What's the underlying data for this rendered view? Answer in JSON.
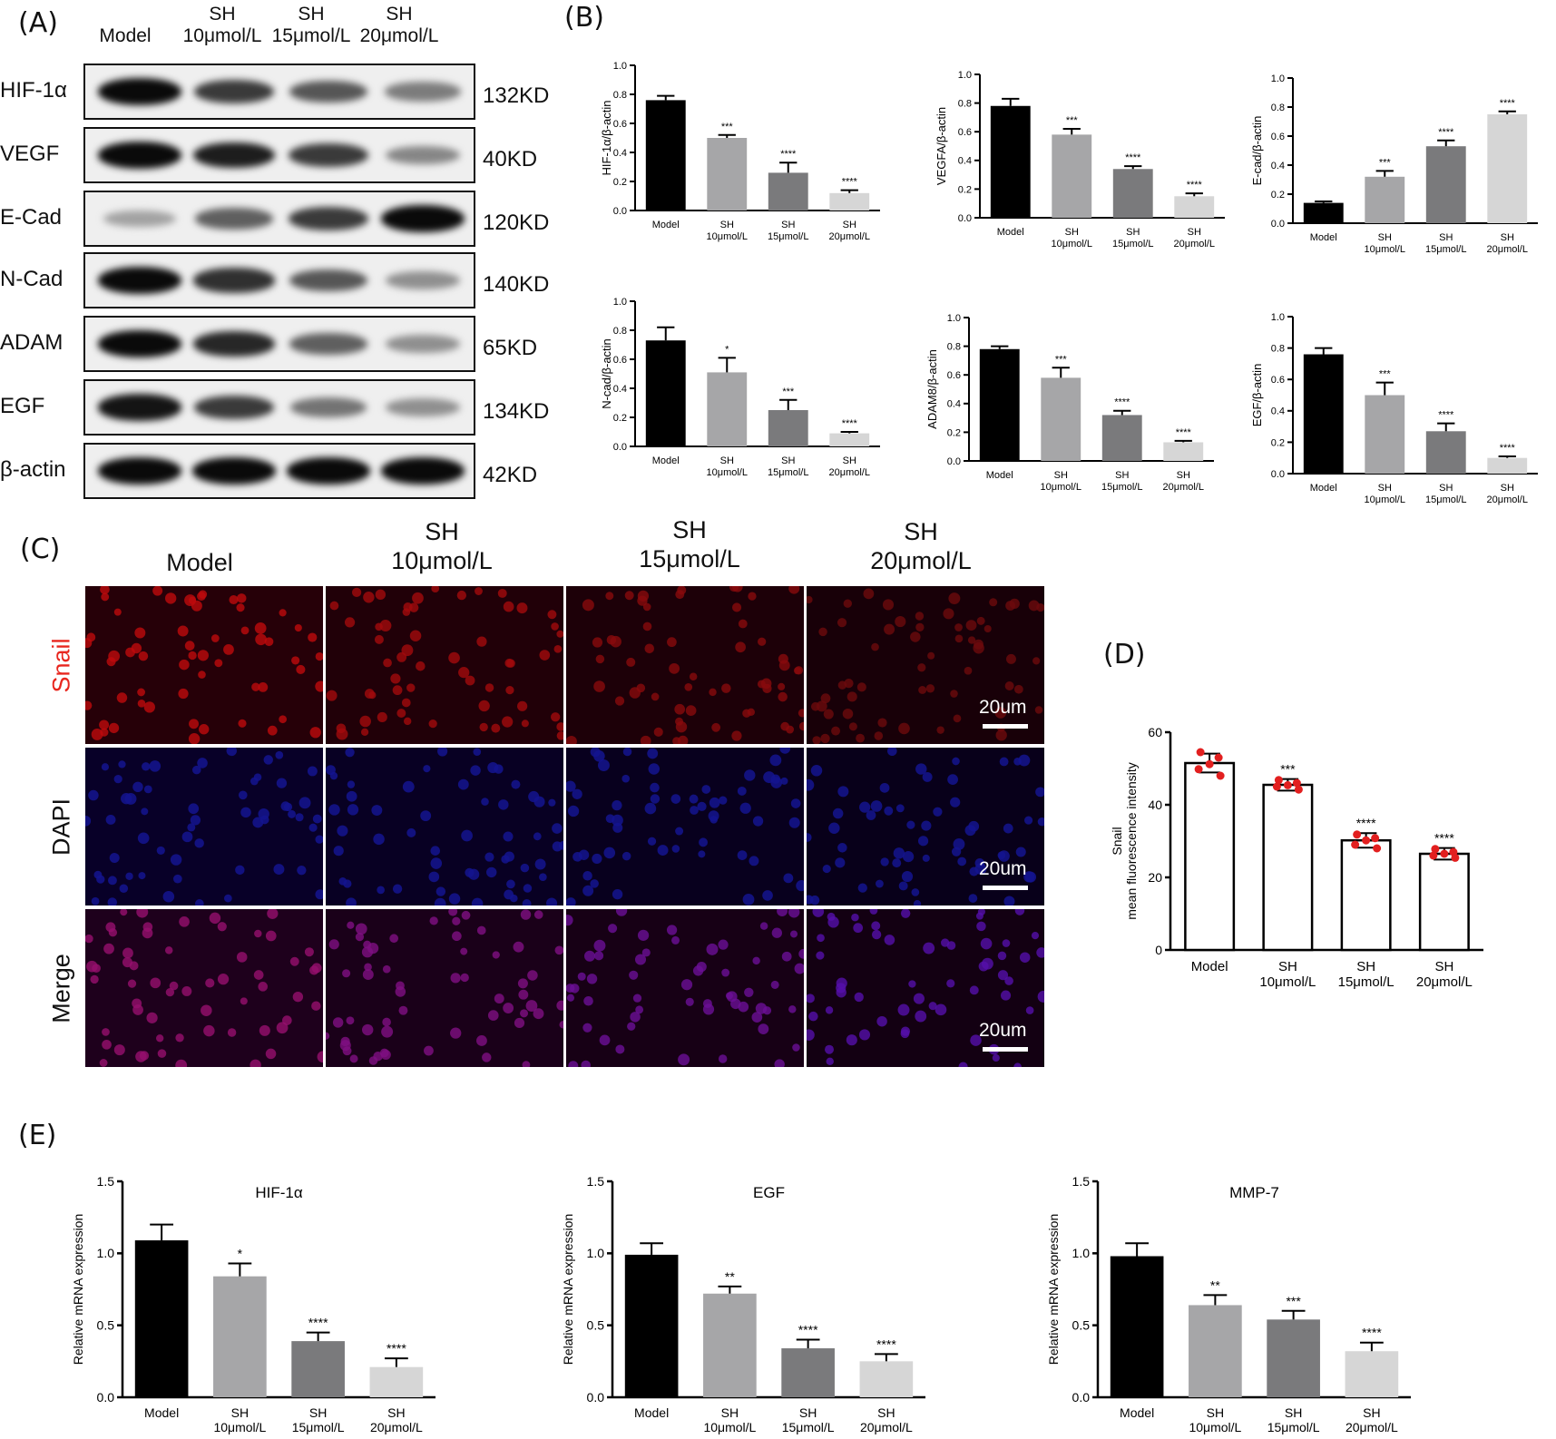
{
  "panels": {
    "A": "(A)",
    "B": "(B)",
    "C": "(C)",
    "D": "(D)",
    "E": "(E)"
  },
  "western_blot": {
    "columns": [
      {
        "l1": "",
        "l2": "Model"
      },
      {
        "l1": "SH",
        "l2": "10μmol/L"
      },
      {
        "l1": "SH",
        "l2": "15μmol/L"
      },
      {
        "l1": "SH",
        "l2": "20μmol/L"
      }
    ],
    "rows": [
      {
        "protein": "HIF-1α",
        "kd": "132KD",
        "intensity": [
          1.0,
          0.75,
          0.6,
          0.4
        ]
      },
      {
        "protein": "VEGF",
        "kd": "40KD",
        "intensity": [
          1.0,
          0.9,
          0.75,
          0.35
        ]
      },
      {
        "protein": "E-Cad",
        "kd": "120KD",
        "intensity": [
          0.2,
          0.55,
          0.75,
          1.0
        ]
      },
      {
        "protein": "N-Cad",
        "kd": "140KD",
        "intensity": [
          1.0,
          0.8,
          0.6,
          0.3
        ]
      },
      {
        "protein": "ADAM",
        "kd": "65KD",
        "intensity": [
          1.0,
          0.85,
          0.55,
          0.3
        ]
      },
      {
        "protein": "EGF",
        "kd": "134KD",
        "intensity": [
          0.95,
          0.75,
          0.45,
          0.3
        ]
      },
      {
        "protein": "β-actin",
        "kd": "42KD",
        "intensity": [
          1.0,
          1.0,
          1.0,
          1.0
        ]
      }
    ]
  },
  "if_panel": {
    "columns": [
      {
        "l1": "",
        "l2": "Model"
      },
      {
        "l1": "SH",
        "l2": "10μmol/L"
      },
      {
        "l1": "SH",
        "l2": "15μmol/L"
      },
      {
        "l1": "SH",
        "l2": "20μmol/L"
      }
    ],
    "rows": [
      {
        "label": "Snail",
        "label_color": "#e8261e"
      },
      {
        "label": "DAPI",
        "label_color": "#111111"
      },
      {
        "label": "Merge",
        "label_color": "#111111"
      }
    ],
    "scale_bar": "20um"
  },
  "colors": {
    "black_bar": "#000000",
    "bar_10": "#a6a6a8",
    "bar_15": "#7a7a7c",
    "bar_20": "#d6d6d6",
    "dot": "#e21f1f"
  },
  "chart_data": [
    {
      "id": "hif",
      "type": "bar",
      "ylabel": "HIF-1α/β-actin",
      "ylim": [
        0,
        1.0
      ],
      "yticks": [
        "0.0",
        "0.2",
        "0.4",
        "0.6",
        "0.8",
        "1.0"
      ],
      "categories": [
        [
          "Model"
        ],
        [
          "SH",
          "10μmol/L"
        ],
        [
          "SH",
          "15μmol/L"
        ],
        [
          "SH",
          "20μmol/L"
        ]
      ],
      "values": [
        0.76,
        0.5,
        0.26,
        0.12
      ],
      "errors": [
        0.03,
        0.02,
        0.07,
        0.02
      ],
      "significance": [
        "",
        "***",
        "****",
        "****"
      ]
    },
    {
      "id": "vegfa",
      "type": "bar",
      "ylabel": "VEGFA/β-actin",
      "ylim": [
        0,
        1.0
      ],
      "yticks": [
        "0.0",
        "0.2",
        "0.4",
        "0.6",
        "0.8",
        "1.0"
      ],
      "categories": [
        [
          "Model"
        ],
        [
          "SH",
          "10μmol/L"
        ],
        [
          "SH",
          "15μmol/L"
        ],
        [
          "SH",
          "20μmol/L"
        ]
      ],
      "values": [
        0.78,
        0.58,
        0.34,
        0.15
      ],
      "errors": [
        0.05,
        0.04,
        0.02,
        0.02
      ],
      "significance": [
        "",
        "***",
        "****",
        "****"
      ]
    },
    {
      "id": "ecad",
      "type": "bar",
      "ylabel": "E-cad/β-actin",
      "ylim": [
        0,
        1.0
      ],
      "yticks": [
        "0.0",
        "0.2",
        "0.4",
        "0.6",
        "0.8",
        "1.0"
      ],
      "categories": [
        [
          "Model"
        ],
        [
          "SH",
          "10μmol/L"
        ],
        [
          "SH",
          "15μmol/L"
        ],
        [
          "SH",
          "20μmol/L"
        ]
      ],
      "values": [
        0.14,
        0.32,
        0.53,
        0.75
      ],
      "errors": [
        0.01,
        0.04,
        0.04,
        0.02
      ],
      "significance": [
        "",
        "***",
        "****",
        "****"
      ]
    },
    {
      "id": "ncad",
      "type": "bar",
      "ylabel": "N-cad/β-actin",
      "ylim": [
        0,
        1.0
      ],
      "yticks": [
        "0.0",
        "0.2",
        "0.4",
        "0.6",
        "0.8",
        "1.0"
      ],
      "categories": [
        [
          "Model"
        ],
        [
          "SH",
          "10μmol/L"
        ],
        [
          "SH",
          "15μmol/L"
        ],
        [
          "SH",
          "20μmol/L"
        ]
      ],
      "values": [
        0.73,
        0.51,
        0.25,
        0.09
      ],
      "errors": [
        0.09,
        0.1,
        0.07,
        0.01
      ],
      "significance": [
        "",
        "*",
        "***",
        "****"
      ]
    },
    {
      "id": "adam8",
      "type": "bar",
      "ylabel": "ADAM8/β-actin",
      "ylim": [
        0,
        1.0
      ],
      "yticks": [
        "0.0",
        "0.2",
        "0.4",
        "0.6",
        "0.8",
        "1.0"
      ],
      "categories": [
        [
          "Model"
        ],
        [
          "SH",
          "10μmol/L"
        ],
        [
          "SH",
          "15μmol/L"
        ],
        [
          "SH",
          "20μmol/L"
        ]
      ],
      "values": [
        0.78,
        0.58,
        0.32,
        0.13
      ],
      "errors": [
        0.02,
        0.07,
        0.03,
        0.01
      ],
      "significance": [
        "",
        "***",
        "****",
        "****"
      ]
    },
    {
      "id": "egf",
      "type": "bar",
      "ylabel": "EGF/β-actin",
      "ylim": [
        0,
        1.0
      ],
      "yticks": [
        "0.0",
        "0.2",
        "0.4",
        "0.6",
        "0.8",
        "1.0"
      ],
      "categories": [
        [
          "Model"
        ],
        [
          "SH",
          "10μmol/L"
        ],
        [
          "SH",
          "15μmol/L"
        ],
        [
          "SH",
          "20μmol/L"
        ]
      ],
      "values": [
        0.76,
        0.5,
        0.27,
        0.1
      ],
      "errors": [
        0.04,
        0.08,
        0.05,
        0.01
      ],
      "significance": [
        "",
        "***",
        "****",
        "****"
      ]
    },
    {
      "id": "snail",
      "type": "bar",
      "ylabel": [
        "Snail",
        "mean fluorescence intensity"
      ],
      "ylim": [
        0,
        60
      ],
      "yticks": [
        "0",
        "20",
        "40",
        "60"
      ],
      "categories": [
        [
          "Model"
        ],
        [
          "SH",
          "10μmol/L"
        ],
        [
          "SH",
          "15μmol/L"
        ],
        [
          "SH",
          "20μmol/L"
        ]
      ],
      "values": [
        51.5,
        45.5,
        30.2,
        26.5
      ],
      "errors": [
        2.6,
        1.6,
        2.0,
        1.6
      ],
      "significance": [
        "",
        "***",
        "****",
        "****"
      ],
      "points": [
        [
          54.5,
          53.0,
          51.2,
          49.8,
          48.0
        ],
        [
          46.8,
          46.0,
          45.4,
          45.0,
          44.2
        ],
        [
          31.8,
          30.8,
          30.2,
          29.0,
          28.0
        ],
        [
          27.8,
          27.0,
          26.5,
          26.0,
          25.4
        ]
      ]
    },
    {
      "id": "mrna_hif",
      "type": "bar",
      "title": "HIF-1α",
      "ylabel": "Relative mRNA expression",
      "ylim": [
        0,
        1.5
      ],
      "yticks": [
        "0.0",
        "0.5",
        "1.0",
        "1.5"
      ],
      "categories": [
        [
          "Model"
        ],
        [
          "SH",
          "10μmol/L"
        ],
        [
          "SH",
          "15μmol/L"
        ],
        [
          "SH",
          "20μmol/L"
        ]
      ],
      "values": [
        1.09,
        0.84,
        0.39,
        0.21
      ],
      "errors": [
        0.11,
        0.09,
        0.06,
        0.06
      ],
      "significance": [
        "",
        "*",
        "****",
        "****"
      ]
    },
    {
      "id": "mrna_egf",
      "type": "bar",
      "title": "EGF",
      "ylabel": "Relative mRNA expression",
      "ylim": [
        0,
        1.5
      ],
      "yticks": [
        "0.0",
        "0.5",
        "1.0",
        "1.5"
      ],
      "categories": [
        [
          "Model"
        ],
        [
          "SH",
          "10μmol/L"
        ],
        [
          "SH",
          "15μmol/L"
        ],
        [
          "SH",
          "20μmol/L"
        ]
      ],
      "values": [
        0.99,
        0.72,
        0.34,
        0.25
      ],
      "errors": [
        0.08,
        0.05,
        0.06,
        0.05
      ],
      "significance": [
        "",
        "**",
        "****",
        "****"
      ]
    },
    {
      "id": "mrna_mmp7",
      "type": "bar",
      "title": "MMP-7",
      "ylabel": "Relative mRNA expression",
      "ylim": [
        0,
        1.5
      ],
      "yticks": [
        "0.0",
        "0.5",
        "1.0",
        "1.5"
      ],
      "categories": [
        [
          "Model"
        ],
        [
          "SH",
          "10μmol/L"
        ],
        [
          "SH",
          "15μmol/L"
        ],
        [
          "SH",
          "20μmol/L"
        ]
      ],
      "values": [
        0.98,
        0.64,
        0.54,
        0.32
      ],
      "errors": [
        0.09,
        0.07,
        0.06,
        0.06
      ],
      "significance": [
        "",
        "**",
        "***",
        "****"
      ]
    }
  ]
}
